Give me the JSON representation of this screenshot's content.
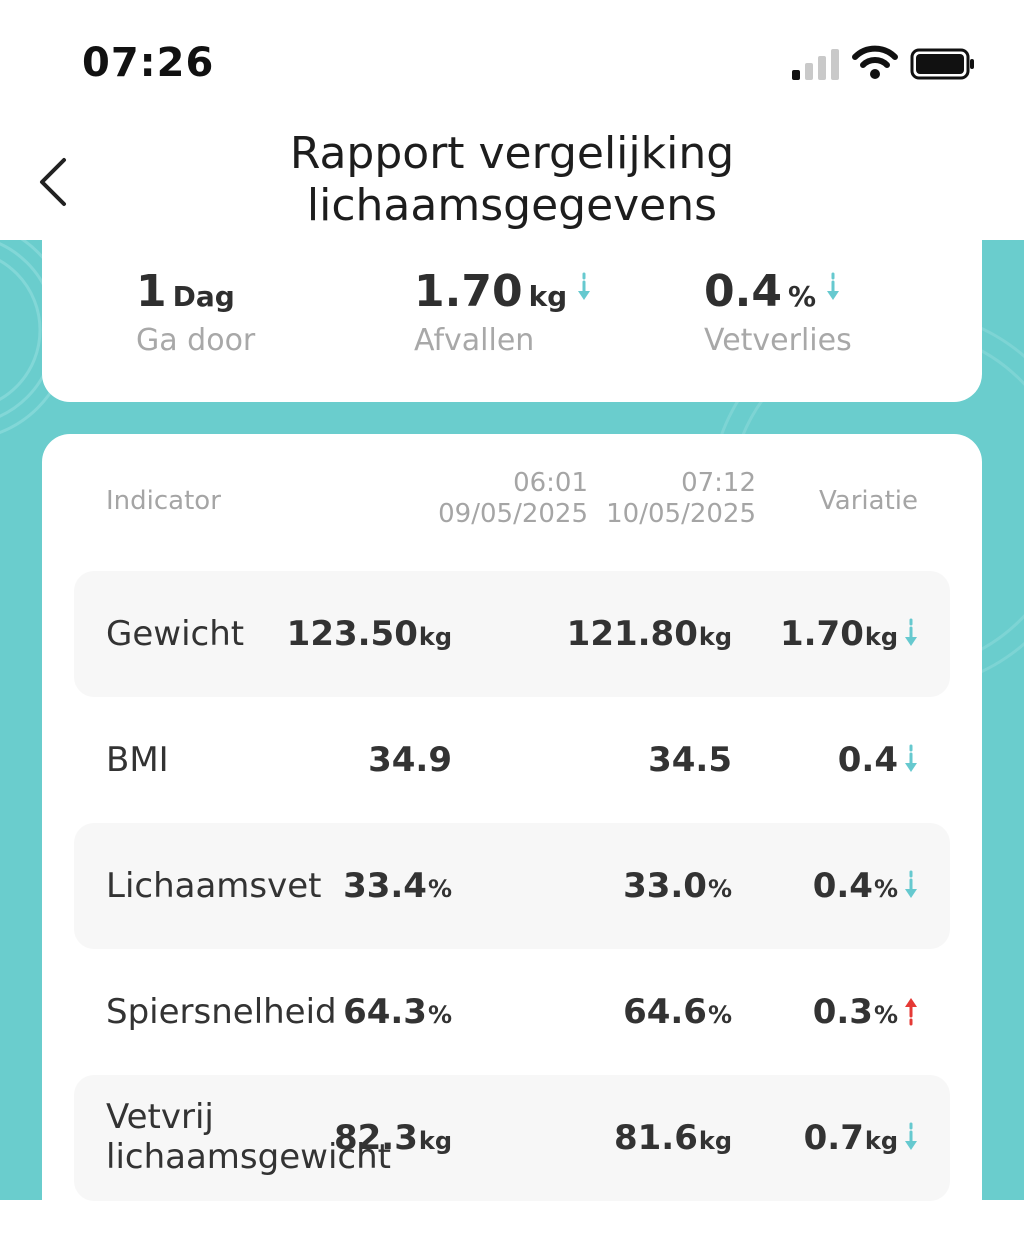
{
  "status_bar": {
    "time": "07:26"
  },
  "header": {
    "title_line1": "Rapport vergelijking",
    "title_line2": "lichaamsgegevens"
  },
  "summary": {
    "days": {
      "value": "1",
      "unit": "Dag",
      "label": "Ga door"
    },
    "weight_loss": {
      "value": "1.70",
      "unit": "kg",
      "label": "Afvallen",
      "trend": "down"
    },
    "fat_loss": {
      "value": "0.4",
      "unit": "%",
      "label": "Vetverlies",
      "trend": "down"
    }
  },
  "table": {
    "header_indicator": "Indicator",
    "col1_time": "06:01",
    "col1_date": "09/05/2025",
    "col2_time": "07:12",
    "col2_date": "10/05/2025",
    "header_variation": "Variatie",
    "rows": [
      {
        "name": "Gewicht",
        "v1": "123.50",
        "v2": "121.80",
        "var": "1.70",
        "unit": "kg",
        "trend": "down"
      },
      {
        "name": "BMI",
        "v1": "34.9",
        "v2": "34.5",
        "var": "0.4",
        "unit": "",
        "trend": "down"
      },
      {
        "name": "Lichaamsvet",
        "v1": "33.4",
        "v2": "33.0",
        "var": "0.4",
        "unit": "%",
        "trend": "down"
      },
      {
        "name": "Spiersnelheid",
        "v1": "64.3",
        "v2": "64.6",
        "var": "0.3",
        "unit": "%",
        "trend": "up"
      },
      {
        "name_line1": "Vetvrij",
        "name_line2": "lichaamsgewicht",
        "v1": "82.3",
        "v2": "81.6",
        "var": "0.7",
        "unit": "kg",
        "trend": "down"
      }
    ]
  },
  "colors": {
    "teal": "#6acdcd",
    "arrow_down": "#66c9cf",
    "arrow_up": "#e53935"
  },
  "icons": {
    "back": "chevron-left-icon",
    "signal": "signal-icon",
    "wifi": "wifi-icon",
    "battery": "battery-icon",
    "down": "arrow-down-icon",
    "up": "arrow-up-icon"
  }
}
